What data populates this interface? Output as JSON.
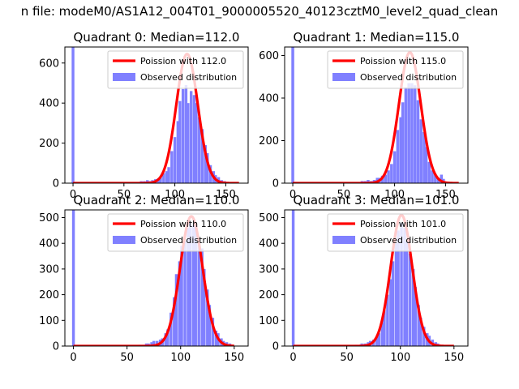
{
  "figure": {
    "title": "n file: modeM0/AS1A12_004T01_9000005520_40123cztM0_level2_quad_clean"
  },
  "colors": {
    "hist": "#8080ff",
    "fit": "#ff0000",
    "axes": "#000000",
    "background": "#ffffff"
  },
  "chart_data": [
    {
      "type": "bar",
      "title": "Quadrant 0: Median=112.0",
      "xlim": [
        -8,
        172
      ],
      "ylim": [
        0,
        680
      ],
      "xticks": [
        0,
        50,
        100,
        150
      ],
      "yticks": [
        0,
        200,
        400,
        600
      ],
      "show_xtick_labels": true,
      "legend": {
        "position": "upper right",
        "fit_label": "Poission with 112.0",
        "hist_label": "Observed distribution"
      },
      "hist": {
        "bin_width": 2.7,
        "bins": [
          {
            "x": 0,
            "y": 680
          },
          {
            "x": 62,
            "y": 5
          },
          {
            "x": 65,
            "y": 5
          },
          {
            "x": 67,
            "y": 10
          },
          {
            "x": 70,
            "y": 10
          },
          {
            "x": 73,
            "y": 15
          },
          {
            "x": 75,
            "y": 10
          },
          {
            "x": 78,
            "y": 15
          },
          {
            "x": 81,
            "y": 20
          },
          {
            "x": 84,
            "y": 25
          },
          {
            "x": 86,
            "y": 30
          },
          {
            "x": 89,
            "y": 50
          },
          {
            "x": 92,
            "y": 60
          },
          {
            "x": 94,
            "y": 80
          },
          {
            "x": 97,
            "y": 160
          },
          {
            "x": 100,
            "y": 230
          },
          {
            "x": 103,
            "y": 310
          },
          {
            "x": 105,
            "y": 410
          },
          {
            "x": 108,
            "y": 470
          },
          {
            "x": 111,
            "y": 490
          },
          {
            "x": 113,
            "y": 400
          },
          {
            "x": 116,
            "y": 460
          },
          {
            "x": 119,
            "y": 440
          },
          {
            "x": 121,
            "y": 400
          },
          {
            "x": 124,
            "y": 330
          },
          {
            "x": 127,
            "y": 270
          },
          {
            "x": 130,
            "y": 190
          },
          {
            "x": 132,
            "y": 150
          },
          {
            "x": 135,
            "y": 90
          },
          {
            "x": 138,
            "y": 60
          },
          {
            "x": 140,
            "y": 40
          },
          {
            "x": 143,
            "y": 30
          },
          {
            "x": 146,
            "y": 15
          },
          {
            "x": 149,
            "y": 10
          },
          {
            "x": 151,
            "y": 5
          }
        ]
      },
      "fit": {
        "mean": 112.0,
        "peak": 645,
        "x_range": [
          0,
          163
        ]
      }
    },
    {
      "type": "bar",
      "title": "Quadrant 1: Median=115.0",
      "xlim": [
        -8,
        172
      ],
      "ylim": [
        0,
        640
      ],
      "xticks": [
        0,
        50,
        100,
        150
      ],
      "yticks": [
        0,
        200,
        400,
        600
      ],
      "show_xtick_labels": true,
      "legend": {
        "position": "upper right",
        "fit_label": "Poission with 115.0",
        "hist_label": "Observed distribution"
      },
      "hist": {
        "bin_width": 2.8,
        "bins": [
          {
            "x": 0,
            "y": 640
          },
          {
            "x": 62,
            "y": 5
          },
          {
            "x": 65,
            "y": 5
          },
          {
            "x": 68,
            "y": 10
          },
          {
            "x": 71,
            "y": 10
          },
          {
            "x": 74,
            "y": 15
          },
          {
            "x": 77,
            "y": 10
          },
          {
            "x": 80,
            "y": 15
          },
          {
            "x": 83,
            "y": 25
          },
          {
            "x": 85,
            "y": 25
          },
          {
            "x": 88,
            "y": 35
          },
          {
            "x": 91,
            "y": 40
          },
          {
            "x": 94,
            "y": 60
          },
          {
            "x": 97,
            "y": 90
          },
          {
            "x": 100,
            "y": 150
          },
          {
            "x": 103,
            "y": 250
          },
          {
            "x": 106,
            "y": 310
          },
          {
            "x": 108,
            "y": 380
          },
          {
            "x": 111,
            "y": 450
          },
          {
            "x": 114,
            "y": 470
          },
          {
            "x": 117,
            "y": 470
          },
          {
            "x": 120,
            "y": 460
          },
          {
            "x": 123,
            "y": 390
          },
          {
            "x": 126,
            "y": 300
          },
          {
            "x": 129,
            "y": 240
          },
          {
            "x": 131,
            "y": 170
          },
          {
            "x": 134,
            "y": 100
          },
          {
            "x": 137,
            "y": 60
          },
          {
            "x": 140,
            "y": 40
          },
          {
            "x": 143,
            "y": 25
          },
          {
            "x": 146,
            "y": 40
          },
          {
            "x": 148,
            "y": 20
          }
        ]
      },
      "fit": {
        "mean": 115.0,
        "peak": 615,
        "x_range": [
          0,
          163
        ]
      }
    },
    {
      "type": "bar",
      "title": "Quadrant 2: Median=110.0",
      "xlim": [
        -8,
        163
      ],
      "ylim": [
        0,
        530
      ],
      "xticks": [
        0,
        50,
        100,
        150
      ],
      "yticks": [
        0,
        100,
        200,
        300,
        400,
        500
      ],
      "show_xtick_labels": true,
      "legend": {
        "position": "upper right",
        "fit_label": "Poission with 110.0",
        "hist_label": "Observed distribution"
      },
      "hist": {
        "bin_width": 2.6,
        "bins": [
          {
            "x": 0,
            "y": 530
          },
          {
            "x": 62,
            "y": 5
          },
          {
            "x": 65,
            "y": 5
          },
          {
            "x": 68,
            "y": 10
          },
          {
            "x": 70,
            "y": 10
          },
          {
            "x": 73,
            "y": 15
          },
          {
            "x": 75,
            "y": 20
          },
          {
            "x": 78,
            "y": 20
          },
          {
            "x": 81,
            "y": 25
          },
          {
            "x": 83,
            "y": 30
          },
          {
            "x": 86,
            "y": 50
          },
          {
            "x": 88,
            "y": 65
          },
          {
            "x": 91,
            "y": 130
          },
          {
            "x": 94,
            "y": 190
          },
          {
            "x": 96,
            "y": 280
          },
          {
            "x": 99,
            "y": 330
          },
          {
            "x": 101,
            "y": 390
          },
          {
            "x": 104,
            "y": 410
          },
          {
            "x": 107,
            "y": 460
          },
          {
            "x": 109,
            "y": 480
          },
          {
            "x": 112,
            "y": 470
          },
          {
            "x": 114,
            "y": 460
          },
          {
            "x": 117,
            "y": 410
          },
          {
            "x": 120,
            "y": 380
          },
          {
            "x": 122,
            "y": 300
          },
          {
            "x": 125,
            "y": 220
          },
          {
            "x": 127,
            "y": 160
          },
          {
            "x": 130,
            "y": 110
          },
          {
            "x": 133,
            "y": 60
          },
          {
            "x": 135,
            "y": 50
          },
          {
            "x": 138,
            "y": 30
          },
          {
            "x": 140,
            "y": 20
          },
          {
            "x": 143,
            "y": 15
          },
          {
            "x": 146,
            "y": 10
          }
        ]
      },
      "fit": {
        "mean": 110.0,
        "peak": 505,
        "x_range": [
          0,
          150
        ]
      }
    },
    {
      "type": "bar",
      "title": "Quadrant 3: Median=101.0",
      "xlim": [
        -8,
        163
      ],
      "ylim": [
        0,
        530
      ],
      "xticks": [
        0,
        50,
        100,
        150
      ],
      "yticks": [
        0,
        100,
        200,
        300,
        400,
        500
      ],
      "show_xtick_labels": true,
      "legend": {
        "position": "upper right",
        "fit_label": "Poission with 101.0",
        "hist_label": "Observed distribution"
      },
      "hist": {
        "bin_width": 2.6,
        "bins": [
          {
            "x": 0,
            "y": 530
          },
          {
            "x": 59,
            "y": 5
          },
          {
            "x": 62,
            "y": 5
          },
          {
            "x": 64,
            "y": 10
          },
          {
            "x": 67,
            "y": 10
          },
          {
            "x": 70,
            "y": 15
          },
          {
            "x": 72,
            "y": 20
          },
          {
            "x": 75,
            "y": 25
          },
          {
            "x": 78,
            "y": 35
          },
          {
            "x": 80,
            "y": 50
          },
          {
            "x": 83,
            "y": 90
          },
          {
            "x": 85,
            "y": 140
          },
          {
            "x": 88,
            "y": 200
          },
          {
            "x": 91,
            "y": 260
          },
          {
            "x": 93,
            "y": 330
          },
          {
            "x": 96,
            "y": 400
          },
          {
            "x": 98,
            "y": 450
          },
          {
            "x": 101,
            "y": 480
          },
          {
            "x": 104,
            "y": 460
          },
          {
            "x": 106,
            "y": 410
          },
          {
            "x": 109,
            "y": 360
          },
          {
            "x": 112,
            "y": 300
          },
          {
            "x": 114,
            "y": 230
          },
          {
            "x": 117,
            "y": 160
          },
          {
            "x": 119,
            "y": 110
          },
          {
            "x": 122,
            "y": 75
          },
          {
            "x": 125,
            "y": 50
          },
          {
            "x": 127,
            "y": 40
          },
          {
            "x": 130,
            "y": 25
          },
          {
            "x": 133,
            "y": 15
          },
          {
            "x": 135,
            "y": 10
          },
          {
            "x": 138,
            "y": 5
          }
        ]
      },
      "fit": {
        "mean": 101.0,
        "peak": 510,
        "x_range": [
          0,
          150
        ]
      }
    }
  ]
}
